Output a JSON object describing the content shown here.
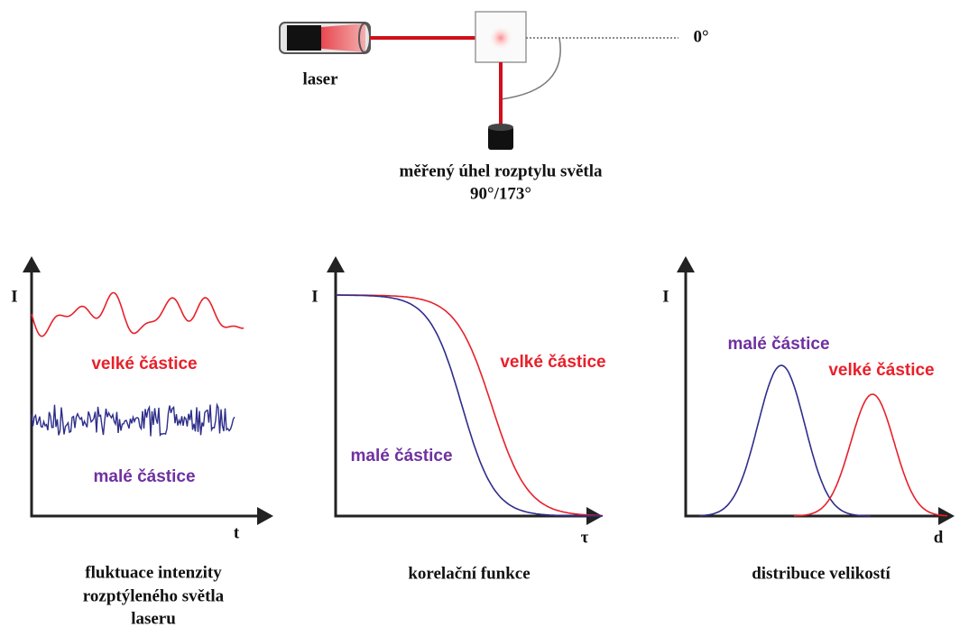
{
  "setup": {
    "laser_label": "laser",
    "angle_zero": "0°",
    "detector_label": [
      "měřený úhel rozptylu světla",
      "90°/173°"
    ]
  },
  "panels": [
    {
      "y_label": "I",
      "x_label": "t",
      "large_label": "velké částice",
      "small_label": "malé částice",
      "caption": [
        "fluktuace intenzity",
        "rozptýleného světla",
        "laseru"
      ]
    },
    {
      "y_label": "I",
      "x_label": "τ",
      "large_label": "velké částice",
      "small_label": "malé částice",
      "caption": [
        "korelační funkce"
      ]
    },
    {
      "y_label": "I",
      "x_label": "d",
      "large_label": "velké částice",
      "small_label": "malé částice",
      "caption": [
        "distribuce velikostí"
      ]
    }
  ]
}
